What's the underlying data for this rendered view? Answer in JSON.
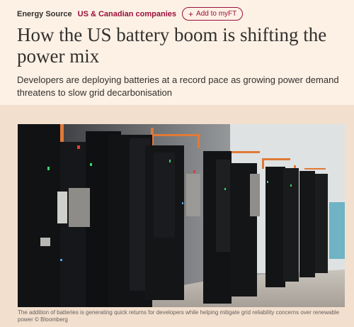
{
  "header": {
    "series": "Energy Source",
    "topic": "US & Canadian companies",
    "myft_label": "Add to myFT",
    "myft_icon": "plus-icon"
  },
  "article": {
    "headline": "How the US battery boom is shifting the power mix",
    "standfirst": "Developers are deploying batteries at a record pace as growing power demand threatens to slow grid decarbonisation"
  },
  "image": {
    "caption": "The addition of batteries is generating quick returns for developers while helping mitigate grid reliability concerns over renewable power © Bloomberg"
  },
  "colors": {
    "background": "#fdf1e5",
    "band": "#f2dfce",
    "accent": "#990f3d",
    "text": "#33302e"
  }
}
